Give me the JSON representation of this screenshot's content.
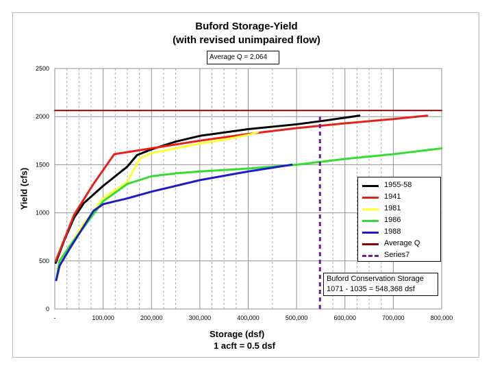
{
  "chart_data": {
    "type": "line",
    "title": "Buford Storage-Yield",
    "subtitle": "(with revised unimpaired flow)",
    "xlabel": "Storage (dsf)",
    "xlabel_note": "1 acft = 0.5 dsf",
    "ylabel": "Yield (cfs)",
    "xlim": [
      0,
      800000
    ],
    "ylim": [
      0,
      2500
    ],
    "x_ticks": [
      0,
      100000,
      200000,
      300000,
      400000,
      500000,
      600000,
      700000,
      800000
    ],
    "x_tick_labels": [
      "-",
      "100,000",
      "200,000",
      "300,000",
      "400,000",
      "500,000",
      "600,000",
      "700,000",
      "800,000"
    ],
    "y_ticks": [
      0,
      500,
      1000,
      1500,
      2000,
      2500
    ],
    "y_tick_labels": [
      "0",
      "500",
      "1000",
      "1500",
      "2000",
      "2500"
    ],
    "legend_position": "right",
    "annotation": "Average Q = 2,064",
    "storage_note": [
      "Buford Conservation Storage",
      "1071 - 1035 = 548,368 dsf"
    ],
    "series": [
      {
        "name": "1955-58",
        "color": "#000000",
        "x": [
          2000,
          20000,
          40000,
          60000,
          100000,
          130000,
          150000,
          170000,
          200000,
          250000,
          300000,
          400000,
          500000,
          560000,
          630000
        ],
        "y": [
          480,
          720,
          950,
          1100,
          1280,
          1400,
          1480,
          1600,
          1660,
          1740,
          1800,
          1870,
          1920,
          1960,
          2010
        ]
      },
      {
        "name": "1941",
        "color": "#e8201a",
        "x": [
          2000,
          40000,
          80000,
          123000,
          200000,
          300000,
          400000,
          500000,
          600000,
          700000,
          770000
        ],
        "y": [
          500,
          980,
          1300,
          1610,
          1670,
          1750,
          1820,
          1880,
          1930,
          1975,
          2010
        ]
      },
      {
        "name": "1981",
        "color": "#ffff33",
        "x": [
          5000,
          50000,
          100000,
          150000,
          175000,
          200000,
          250000,
          300000,
          350000,
          400000,
          420000
        ],
        "y": [
          420,
          820,
          1150,
          1320,
          1560,
          1620,
          1670,
          1720,
          1760,
          1810,
          1840
        ]
      },
      {
        "name": "1986",
        "color": "#33dd33",
        "x": [
          3000,
          10000,
          30000,
          60000,
          100000,
          150000,
          200000,
          250000,
          300000,
          400000,
          500000,
          600000,
          700000,
          800000
        ],
        "y": [
          300,
          500,
          650,
          850,
          1120,
          1300,
          1380,
          1410,
          1430,
          1460,
          1500,
          1560,
          1610,
          1670
        ]
      },
      {
        "name": "1988",
        "color": "#1c1cc8",
        "x": [
          3000,
          10000,
          30000,
          60000,
          80000,
          100000,
          150000,
          200000,
          300000,
          400000,
          490000
        ],
        "y": [
          300,
          450,
          620,
          860,
          1020,
          1090,
          1150,
          1220,
          1340,
          1430,
          1500
        ]
      },
      {
        "name": "Average Q",
        "color": "#8b0000",
        "x": [
          0,
          800000
        ],
        "y": [
          2064,
          2064
        ]
      },
      {
        "name": "Series7",
        "color": "#6a1e9a",
        "dashed": true,
        "x": [
          548368,
          548368
        ],
        "y": [
          0,
          2000
        ]
      }
    ]
  }
}
